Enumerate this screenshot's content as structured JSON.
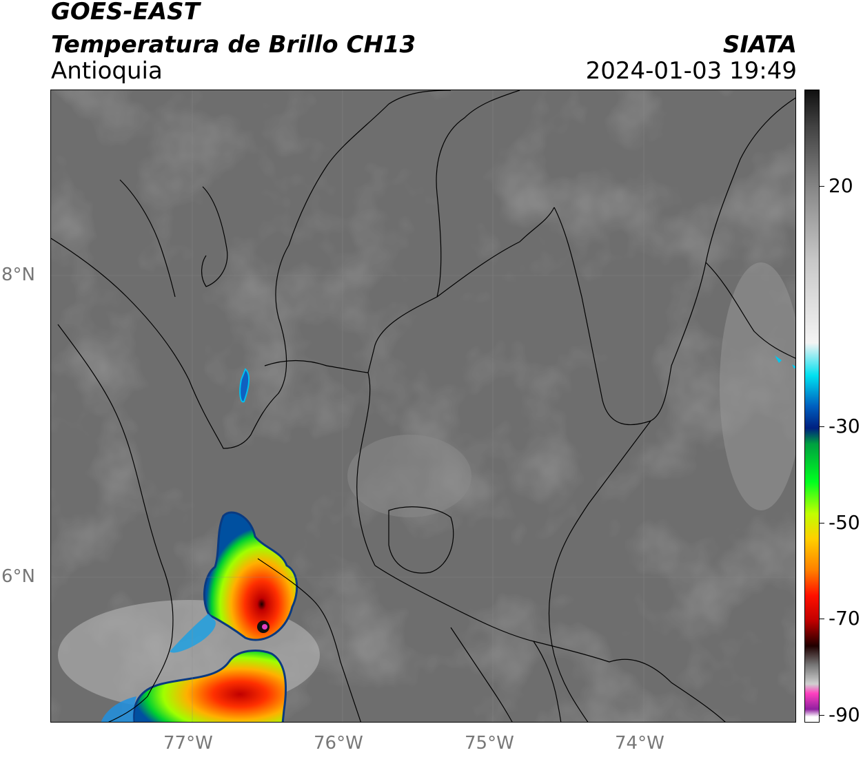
{
  "header": {
    "satellite": "GOES-EAST",
    "product": "Temperatura de Brillo CH13",
    "region": "Antioquia",
    "organization": "SIATA",
    "timestamp": "2024-01-03 19:49"
  },
  "map": {
    "latitude_labels": [
      "8°N",
      "6°N"
    ],
    "longitude_labels": [
      "77°W",
      "76°W",
      "75°W",
      "74°W"
    ],
    "background_gray": "#6a6a6a"
  },
  "colorbar": {
    "tick_labels": [
      "20",
      "-30",
      "-50",
      "-70",
      "-90"
    ],
    "stops": [
      "#111111",
      "#444444",
      "#8a8a8a",
      "#c8c8c8",
      "#f4f4f4",
      "#00e0f0",
      "#0060c0",
      "#002080",
      "#00a040",
      "#00ff20",
      "#c0ff00",
      "#ffd000",
      "#ff8000",
      "#ff1000",
      "#c00000",
      "#200000",
      "#777777",
      "#d0d0d0",
      "#ff40c0",
      "#9020a0",
      "#ffffff"
    ]
  }
}
